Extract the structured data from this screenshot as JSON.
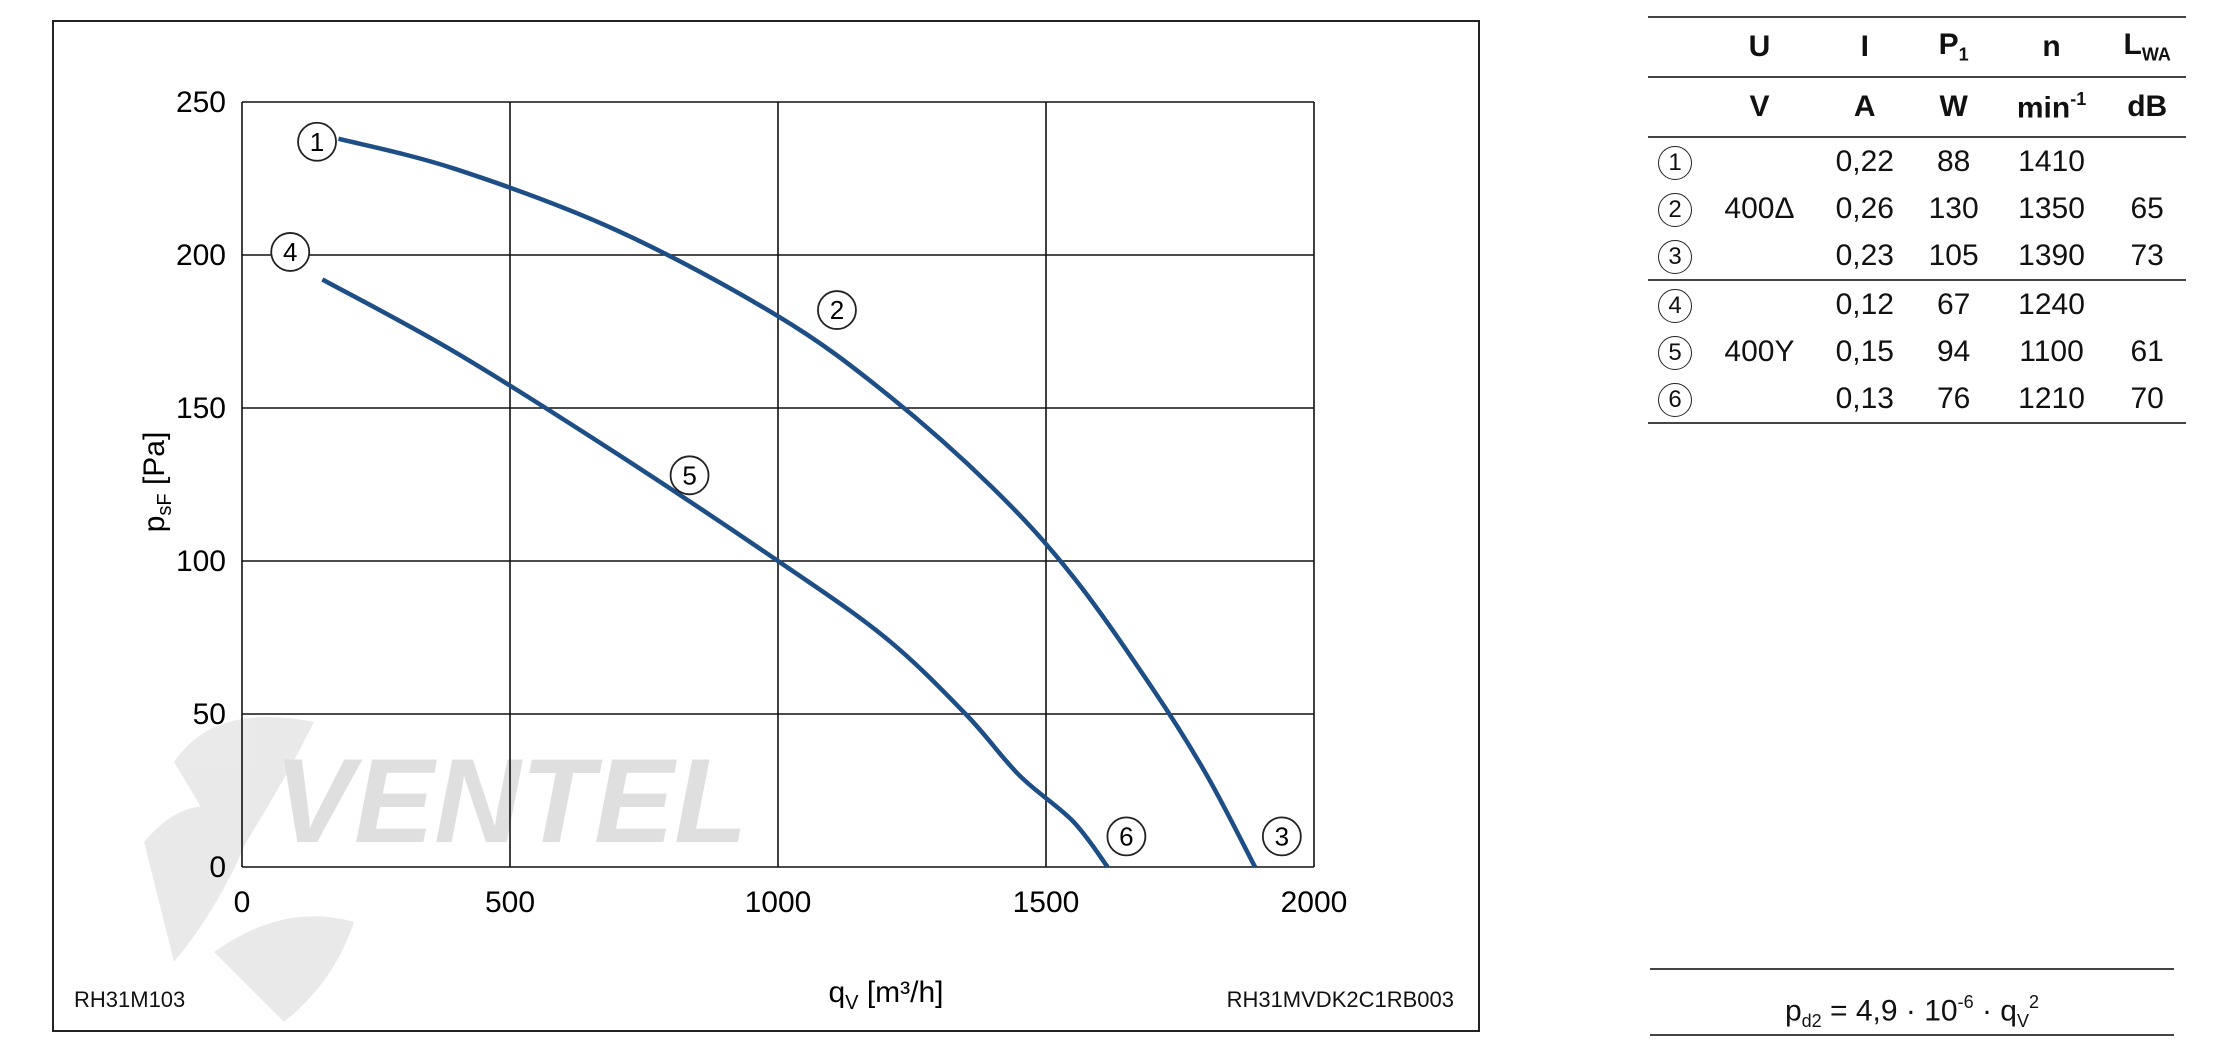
{
  "chart_data": {
    "type": "line",
    "xlabel": "q",
    "xlabel_sub": "V",
    "xlabel_unit": " [m³/h]",
    "ylabel": "p",
    "ylabel_sub": "sF",
    "ylabel_unit": " [Pa]",
    "xlim": [
      0,
      2000
    ],
    "ylim": [
      0,
      250
    ],
    "x_ticks": [
      0,
      500,
      1000,
      1500,
      2000
    ],
    "y_ticks": [
      0,
      50,
      100,
      150,
      200,
      250
    ],
    "grid": true,
    "line_color": "#1d4e85",
    "series": [
      {
        "points": [
          [
            180,
            238
          ],
          [
            400,
            228
          ],
          [
            700,
            208
          ],
          [
            1000,
            180
          ],
          [
            1200,
            155
          ],
          [
            1400,
            124
          ],
          [
            1550,
            95
          ],
          [
            1700,
            58
          ],
          [
            1800,
            30
          ],
          [
            1890,
            0
          ]
        ]
      },
      {
        "points": [
          [
            150,
            192
          ],
          [
            400,
            168
          ],
          [
            700,
            135
          ],
          [
            1000,
            100
          ],
          [
            1200,
            75
          ],
          [
            1350,
            50
          ],
          [
            1450,
            30
          ],
          [
            1550,
            15
          ],
          [
            1615,
            0
          ]
        ]
      }
    ],
    "markers": [
      {
        "label": "1",
        "x": 140,
        "y": 237
      },
      {
        "label": "2",
        "x": 1110,
        "y": 182
      },
      {
        "label": "3",
        "x": 1940,
        "y": 10
      },
      {
        "label": "4",
        "x": 90,
        "y": 201
      },
      {
        "label": "5",
        "x": 835,
        "y": 128
      },
      {
        "label": "6",
        "x": 1650,
        "y": 10
      }
    ]
  },
  "labels": {
    "chart_code_left": "RH31M103",
    "chart_code_right": "RH31MVDK2C1RB003",
    "watermark": "VENTEL"
  },
  "table": {
    "header_symbols": [
      {
        "main": "U",
        "sub": ""
      },
      {
        "main": "I",
        "sub": ""
      },
      {
        "main": "P",
        "sub": "1"
      },
      {
        "main": "n",
        "sub": ""
      },
      {
        "main": "L",
        "sub": "WA"
      }
    ],
    "header_units": [
      {
        "main": "V",
        "sup": ""
      },
      {
        "main": "A",
        "sup": ""
      },
      {
        "main": "W",
        "sup": ""
      },
      {
        "main": "min",
        "sup": "-1"
      },
      {
        "main": "dB",
        "sup": ""
      }
    ],
    "rows": [
      {
        "marker": "1",
        "u": "",
        "i": "0,22",
        "p": "88",
        "n": "1410",
        "lwa": ""
      },
      {
        "marker": "2",
        "u": "400Δ",
        "i": "0,26",
        "p": "130",
        "n": "1350",
        "lwa": "65"
      },
      {
        "marker": "3",
        "u": "",
        "i": "0,23",
        "p": "105",
        "n": "1390",
        "lwa": "73"
      },
      {
        "marker": "4",
        "u": "",
        "i": "0,12",
        "p": "67",
        "n": "1240",
        "lwa": ""
      },
      {
        "marker": "5",
        "u": "400Y",
        "i": "0,15",
        "p": "94",
        "n": "1100",
        "lwa": "61"
      },
      {
        "marker": "6",
        "u": "",
        "i": "0,13",
        "p": "76",
        "n": "1210",
        "lwa": "70"
      }
    ]
  },
  "formula": {
    "lhs": "p",
    "lhs_sub": "d2",
    "middle": " = 4,9 · 10",
    "exp": "-6",
    "dot": " · q",
    "q_sub": "V",
    "q_sup": "2"
  }
}
